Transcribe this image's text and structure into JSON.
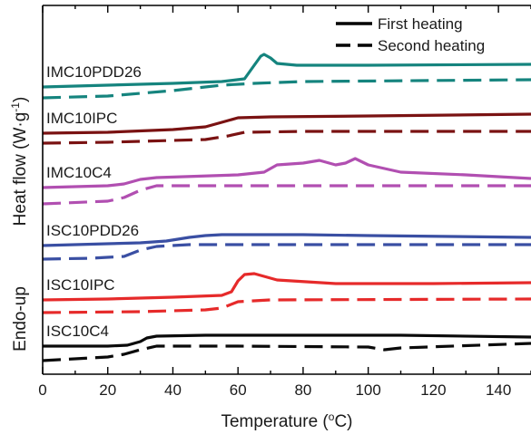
{
  "chart_data": {
    "type": "line",
    "xlabel_main": "Temperature (",
    "xlabel_sup": "o",
    "xlabel_end": "C)",
    "ylabel_main": "Heat flow (W·g",
    "ylabel_sup": "-1",
    "ylabel_end": ")",
    "ylabel_side": "Endo-up",
    "xlim": [
      0,
      150
    ],
    "x_ticks": [
      0,
      20,
      40,
      60,
      80,
      100,
      120,
      140
    ],
    "y_ticks_shown": false,
    "legend_position": "top-right",
    "legend": [
      {
        "label": "First heating",
        "style": "solid"
      },
      {
        "label": "Second heating",
        "style": "dashed"
      }
    ],
    "samples": [
      {
        "name": "IMC10PDD26",
        "color": "#15847e",
        "first_heating": [
          [
            0,
            96
          ],
          [
            20,
            94
          ],
          [
            40,
            92
          ],
          [
            55,
            90
          ],
          [
            62,
            87
          ],
          [
            65,
            72
          ],
          [
            67,
            62
          ],
          [
            68,
            60
          ],
          [
            70,
            64
          ],
          [
            72,
            70
          ],
          [
            78,
            72
          ],
          [
            100,
            72
          ],
          [
            150,
            71
          ]
        ],
        "second_heating": [
          [
            0,
            108
          ],
          [
            20,
            106
          ],
          [
            40,
            100
          ],
          [
            55,
            94
          ],
          [
            65,
            92
          ],
          [
            80,
            90
          ],
          [
            150,
            88
          ]
        ]
      },
      {
        "name": "IMC10IPC",
        "color": "#7a1212",
        "first_heating": [
          [
            0,
            147
          ],
          [
            20,
            146
          ],
          [
            40,
            143
          ],
          [
            50,
            140
          ],
          [
            55,
            135
          ],
          [
            60,
            130
          ],
          [
            70,
            129
          ],
          [
            100,
            128
          ],
          [
            150,
            126
          ]
        ],
        "second_heating": [
          [
            0,
            158
          ],
          [
            20,
            157
          ],
          [
            40,
            155
          ],
          [
            50,
            154
          ],
          [
            57,
            150
          ],
          [
            62,
            146
          ],
          [
            80,
            145
          ],
          [
            150,
            145
          ]
        ]
      },
      {
        "name": "IMC10C4",
        "color": "#b14fb1",
        "first_heating": [
          [
            0,
            207
          ],
          [
            20,
            205
          ],
          [
            25,
            203
          ],
          [
            30,
            198
          ],
          [
            35,
            196
          ],
          [
            60,
            193
          ],
          [
            68,
            190
          ],
          [
            72,
            182
          ],
          [
            80,
            180
          ],
          [
            85,
            177
          ],
          [
            90,
            182
          ],
          [
            93,
            180
          ],
          [
            96,
            175
          ],
          [
            100,
            182
          ],
          [
            110,
            190
          ],
          [
            130,
            193
          ],
          [
            150,
            197
          ]
        ],
        "second_heating": [
          [
            0,
            225
          ],
          [
            20,
            222
          ],
          [
            25,
            218
          ],
          [
            30,
            210
          ],
          [
            35,
            205
          ],
          [
            60,
            205
          ],
          [
            150,
            205
          ]
        ]
      },
      {
        "name": "ISC10PDD26",
        "color": "#3a4fa3",
        "first_heating": [
          [
            0,
            271
          ],
          [
            20,
            269
          ],
          [
            30,
            268
          ],
          [
            38,
            266
          ],
          [
            45,
            262
          ],
          [
            50,
            260
          ],
          [
            55,
            259
          ],
          [
            80,
            259
          ],
          [
            100,
            260
          ],
          [
            150,
            262
          ]
        ],
        "second_heating": [
          [
            0,
            286
          ],
          [
            15,
            285
          ],
          [
            25,
            283
          ],
          [
            30,
            276
          ],
          [
            35,
            272
          ],
          [
            45,
            270
          ],
          [
            150,
            270
          ]
        ]
      },
      {
        "name": "ISC10IPC",
        "color": "#e62a2a",
        "first_heating": [
          [
            0,
            331
          ],
          [
            20,
            330
          ],
          [
            40,
            328
          ],
          [
            55,
            326
          ],
          [
            58,
            322
          ],
          [
            60,
            310
          ],
          [
            62,
            303
          ],
          [
            65,
            302
          ],
          [
            68,
            305
          ],
          [
            72,
            309
          ],
          [
            90,
            313
          ],
          [
            120,
            313
          ],
          [
            150,
            312
          ]
        ],
        "second_heating": [
          [
            0,
            345
          ],
          [
            30,
            344
          ],
          [
            50,
            342
          ],
          [
            55,
            340
          ],
          [
            60,
            333
          ],
          [
            70,
            331
          ],
          [
            150,
            330
          ]
        ]
      },
      {
        "name": "ISC10C4",
        "color": "#0a0a0a",
        "first_heating": [
          [
            0,
            382
          ],
          [
            20,
            382
          ],
          [
            26,
            381
          ],
          [
            30,
            377
          ],
          [
            32,
            373
          ],
          [
            35,
            371
          ],
          [
            50,
            370
          ],
          [
            80,
            370
          ],
          [
            110,
            370
          ],
          [
            150,
            372
          ]
        ],
        "second_heating": [
          [
            0,
            398
          ],
          [
            10,
            396
          ],
          [
            20,
            394
          ],
          [
            25,
            391
          ],
          [
            30,
            386
          ],
          [
            35,
            382
          ],
          [
            60,
            382
          ],
          [
            100,
            383
          ],
          [
            105,
            386
          ],
          [
            110,
            384
          ],
          [
            150,
            379
          ]
        ]
      }
    ]
  }
}
